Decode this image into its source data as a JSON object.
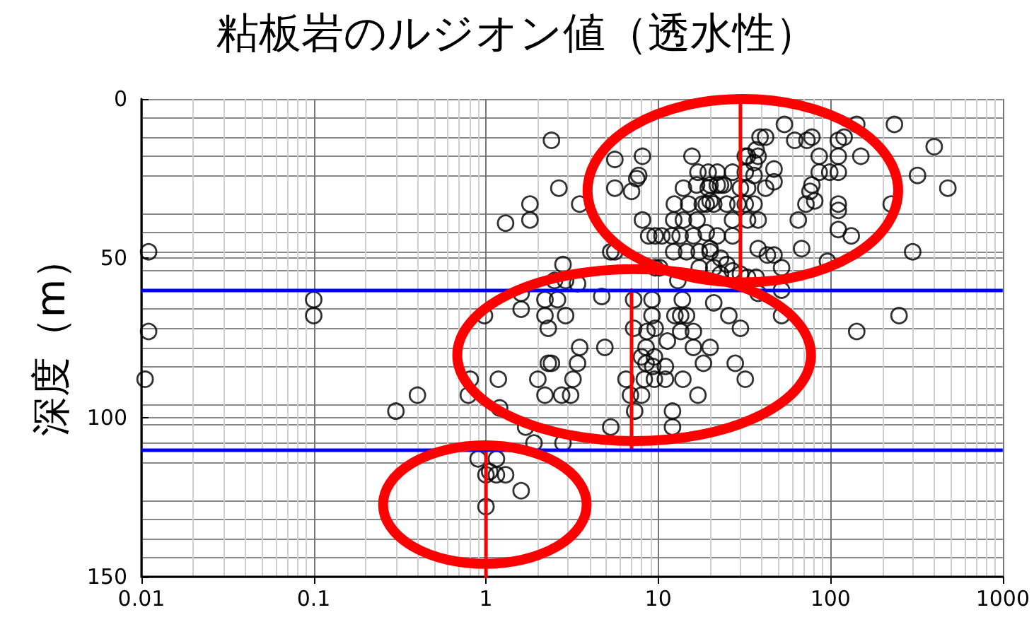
{
  "chart_data": {
    "type": "scatter",
    "title": "粘板岩のルジオン値（透水性）",
    "ylabel": "深度（m）",
    "xlim": [
      0.01,
      1000
    ],
    "xticks": [
      0.01,
      0.1,
      1,
      10,
      100,
      1000
    ],
    "ylim": [
      150,
      0
    ],
    "yticks": [
      0,
      50,
      100,
      150
    ],
    "log": "x",
    "grid": true,
    "marker": "circle",
    "ref_lines": [
      {
        "axis": "y",
        "value": 60,
        "color": "#0000ff"
      },
      {
        "axis": "y",
        "value": 110,
        "color": "#0000ff"
      }
    ],
    "series": [
      {
        "color": "#000000",
        "x": [
          0.011,
          0.011,
          0.0105,
          0.1,
          0.1,
          0.3,
          0.4,
          0.81,
          0.79,
          1.18,
          1.2,
          0.98,
          1.6,
          1.6,
          2.2,
          2.2,
          2.3,
          2.3,
          2,
          2.2,
          1.7,
          1.9,
          0.9,
          1.15,
          1,
          1.05,
          1.15,
          1.3,
          1.6,
          1,
          1.3,
          1.8,
          1.8,
          2.4,
          5.6,
          8.1,
          7.7,
          7.5,
          5.6,
          7,
          2.65,
          3.5,
          8.1,
          15.7,
          2.8,
          5.3,
          5.6,
          2.5,
          2.9,
          3.4,
          2.6,
          2.9,
          4.7,
          7.2,
          9.2,
          13.8,
          12.5,
          13.5,
          14.6,
          25.7,
          9.2,
          7.2,
          8.6,
          9.6,
          13.5,
          16,
          30,
          3.5,
          4.9,
          8.5,
          11.3,
          9.5,
          16,
          20,
          2.4,
          3.4,
          8.5,
          8,
          9.3,
          11,
          18.3,
          28,
          3.2,
          6.5,
          8.3,
          9.5,
          11,
          13.9,
          32,
          2.75,
          3.1,
          6.9,
          8,
          17,
          7.3,
          12.1,
          5.3,
          12.1,
          2.8,
          235,
          400,
          480,
          320,
          225,
          300,
          250,
          142,
          150,
          111,
          111,
          99,
          86,
          86,
          111,
          120,
          142,
          78,
          73,
          62,
          54,
          47,
          47,
          42,
          78,
          76,
          81,
          72,
          65,
          111,
          111,
          111,
          132,
          68,
          96,
          38,
          43,
          47,
          52,
          36,
          38,
          37,
          39,
          42,
          33,
          22,
          20,
          22,
          23,
          27,
          32,
          36,
          32,
          30,
          33,
          25,
          29,
          32,
          36,
          21,
          19,
          27,
          33,
          38,
          22,
          27,
          20,
          23,
          25,
          27,
          30,
          33,
          37,
          21,
          52,
          38,
          52,
          17,
          19.5,
          14,
          16.7,
          19.5,
          24,
          12.4,
          15,
          18,
          20,
          10.5,
          12,
          13.4,
          16,
          19,
          8.8,
          9.6,
          12.3,
          14,
          16.8,
          12.3,
          14.6,
          17.3,
          20,
          9.6,
          10.2,
          17.3,
          21,
          13,
          23
        ],
        "values": [
          48,
          73,
          88,
          63,
          68,
          98,
          93,
          88,
          93,
          88,
          97,
          68,
          61,
          66,
          63,
          68,
          72,
          83,
          88,
          93,
          103,
          108,
          113,
          113,
          118,
          117,
          118,
          118,
          123,
          128,
          39,
          33,
          38,
          13,
          19,
          18,
          24,
          25,
          28,
          29,
          28,
          33,
          38,
          18,
          52,
          48,
          48,
          57,
          57,
          58,
          63,
          68,
          62,
          63,
          63,
          63,
          68,
          68,
          68,
          68,
          68,
          72,
          73,
          72,
          73,
          73,
          72,
          78,
          78,
          78,
          76,
          81,
          78,
          78,
          83,
          83,
          83,
          81,
          84,
          84,
          83,
          83,
          88,
          88,
          88,
          88,
          88,
          88,
          88,
          93,
          93,
          93,
          93,
          93,
          98,
          98,
          103,
          103,
          108,
          8,
          15,
          28,
          24,
          33,
          48,
          68,
          73,
          18,
          18,
          23,
          23,
          18,
          23,
          13,
          12,
          8,
          12,
          13,
          13,
          8,
          22,
          26,
          28,
          27,
          29,
          32,
          33,
          38,
          33,
          35,
          41,
          43,
          47,
          51,
          47,
          49,
          49,
          53,
          20,
          18,
          16,
          12,
          12,
          18,
          23,
          27,
          27,
          27,
          23,
          23,
          24,
          18,
          28,
          28,
          33,
          33,
          33,
          33,
          33,
          33,
          38,
          38,
          38,
          43,
          43,
          47,
          50,
          52,
          54,
          55,
          56,
          56,
          64,
          68,
          61,
          60,
          23,
          23,
          28,
          27,
          28,
          27,
          33,
          33,
          33,
          32,
          43,
          43,
          43,
          43,
          42,
          43,
          43,
          38,
          38,
          38,
          48,
          48,
          48,
          48,
          53,
          53,
          53,
          53,
          57,
          55
        ]
      },
      {
        "type": "line",
        "color": "#ff0000",
        "marker": "none",
        "x": [
          30,
          30
        ],
        "values": [
          0,
          58
        ]
      },
      {
        "type": "line",
        "color": "#ff0000",
        "marker": "none",
        "x": [
          7,
          7
        ],
        "values": [
          60,
          110
        ]
      },
      {
        "type": "line",
        "color": "#ff0000",
        "marker": "none",
        "x": [
          1,
          1
        ],
        "values": [
          110,
          150
        ]
      }
    ]
  }
}
